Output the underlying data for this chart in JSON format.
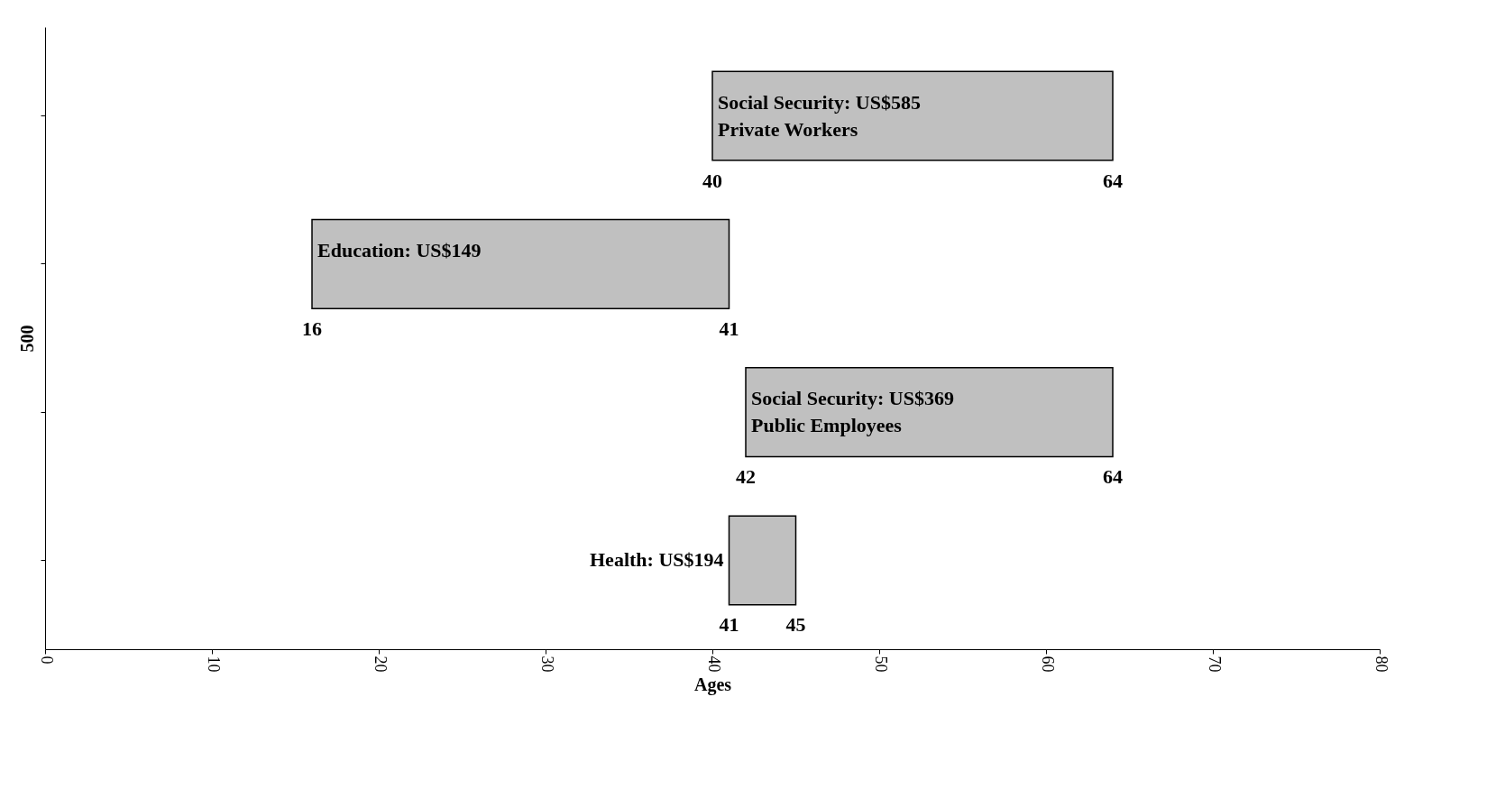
{
  "chart_data": {
    "type": "bar",
    "orientation": "horizontal",
    "xlabel": "Ages",
    "ylabel": "500",
    "categories": [
      "Social Security: US$585\nPrivate Workers",
      "Education: US$149",
      "Social Security: US$369\nPublic Employees",
      "Health: US$194"
    ],
    "base": [
      40,
      41,
      42,
      41
    ],
    "values": [
      24,
      -25,
      22,
      4
    ],
    "color": "#c0c0c0",
    "xlim": [
      0,
      80
    ],
    "xticks": [
      0,
      10,
      20,
      30,
      40,
      50,
      60,
      70,
      80
    ],
    "tick_labels": "x",
    "grid": false,
    "annotations": [
      {
        "text": "40",
        "x": 40,
        "y": "Social Security: US$585\nPrivate Workers"
      },
      {
        "text": "64",
        "x": 64,
        "y": "Social Security: US$585\nPrivate Workers"
      },
      {
        "text": "16",
        "x": 16,
        "y": "Education: US$149"
      },
      {
        "text": "41",
        "x": 41,
        "y": "Education: US$149"
      },
      {
        "text": "42",
        "x": 42,
        "y": "Social Security: US$369\nPublic Employees"
      },
      {
        "text": "64",
        "x": 64,
        "y": "Social Security: US$369\nPublic Employees"
      },
      {
        "text": "41",
        "x": 41,
        "y": "Health: US$194"
      },
      {
        "text": "45",
        "x": 45,
        "y": "Health: US$194"
      }
    ]
  }
}
